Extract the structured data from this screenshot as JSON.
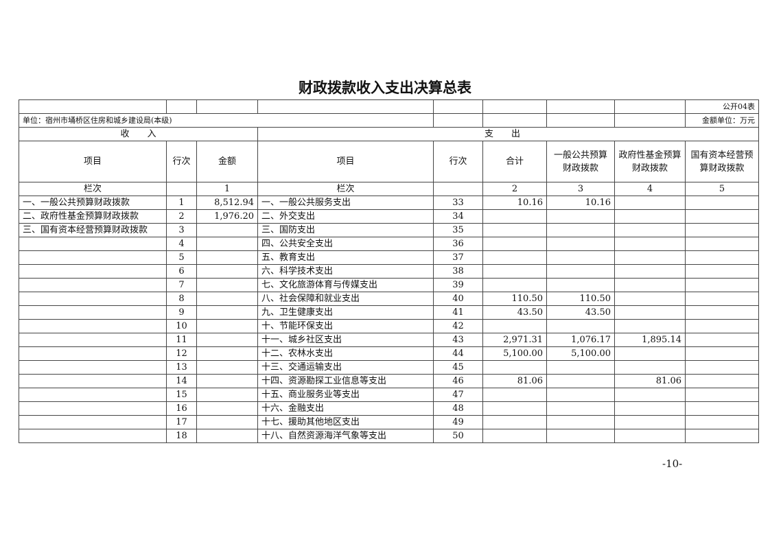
{
  "title": "财政拨款收入支出决算总表",
  "form_code": "公开04表",
  "unit": "单位：宿州市埇桥区住房和城乡建设局(本级)",
  "amount_unit": "金额单位：万元",
  "income_header": "收　　入",
  "expense_header": "支　　出",
  "columns": {
    "income_item": "项目",
    "income_line": "行次",
    "income_amount": "金额",
    "expense_item": "项目",
    "expense_line": "行次",
    "total": "合计",
    "general": "一般公共预算财政拨款",
    "gov_fund": "政府性基金预算财政拨款",
    "state_capital": "国有资本经营预算财政拨款"
  },
  "column_index": {
    "income_label": "栏次",
    "income_amount": "1",
    "expense_label": "栏次",
    "total": "2",
    "general": "3",
    "gov_fund": "4",
    "state_capital": "5"
  },
  "rows": [
    [
      "一、一般公共预算财政拨款",
      "1",
      "8,512.94",
      "一、一般公共服务支出",
      "33",
      "10.16",
      "10.16",
      "",
      ""
    ],
    [
      "二、政府性基金预算财政拨款",
      "2",
      "1,976.20",
      "二、外交支出",
      "34",
      "",
      "",
      "",
      ""
    ],
    [
      "三、国有资本经营预算财政拨款",
      "3",
      "",
      "三、国防支出",
      "35",
      "",
      "",
      "",
      ""
    ],
    [
      "",
      "4",
      "",
      "四、公共安全支出",
      "36",
      "",
      "",
      "",
      ""
    ],
    [
      "",
      "5",
      "",
      "五、教育支出",
      "37",
      "",
      "",
      "",
      ""
    ],
    [
      "",
      "6",
      "",
      "六、科学技术支出",
      "38",
      "",
      "",
      "",
      ""
    ],
    [
      "",
      "7",
      "",
      "七、文化旅游体育与传媒支出",
      "39",
      "",
      "",
      "",
      ""
    ],
    [
      "",
      "8",
      "",
      "八、社会保障和就业支出",
      "40",
      "110.50",
      "110.50",
      "",
      ""
    ],
    [
      "",
      "9",
      "",
      "九、卫生健康支出",
      "41",
      "43.50",
      "43.50",
      "",
      ""
    ],
    [
      "",
      "10",
      "",
      "十、节能环保支出",
      "42",
      "",
      "",
      "",
      ""
    ],
    [
      "",
      "11",
      "",
      "十一、城乡社区支出",
      "43",
      "2,971.31",
      "1,076.17",
      "1,895.14",
      ""
    ],
    [
      "",
      "12",
      "",
      "十二、农林水支出",
      "44",
      "5,100.00",
      "5,100.00",
      "",
      ""
    ],
    [
      "",
      "13",
      "",
      "十三、交通运输支出",
      "45",
      "",
      "",
      "",
      ""
    ],
    [
      "",
      "14",
      "",
      "十四、资源勘探工业信息等支出",
      "46",
      "81.06",
      "",
      "81.06",
      ""
    ],
    [
      "",
      "15",
      "",
      "十五、商业服务业等支出",
      "47",
      "",
      "",
      "",
      ""
    ],
    [
      "",
      "16",
      "",
      "十六、金融支出",
      "48",
      "",
      "",
      "",
      ""
    ],
    [
      "",
      "17",
      "",
      "十七、援助其他地区支出",
      "49",
      "",
      "",
      "",
      ""
    ],
    [
      "",
      "18",
      "",
      "十八、自然资源海洋气象等支出",
      "50",
      "",
      "",
      "",
      ""
    ]
  ],
  "page_number": "-10-"
}
